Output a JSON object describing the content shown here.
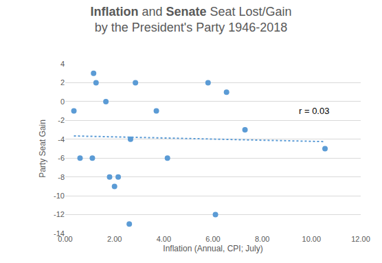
{
  "chart_data": {
    "type": "scatter",
    "title": "Inflation and Senate Seat Lost/Gain\nby the President's Party 1946-2018",
    "x_label": "Inflation (Annual, CPI; July)",
    "y_label": "Party Seat Gain",
    "x": [
      0.35,
      0.6,
      1.1,
      1.15,
      1.25,
      1.65,
      1.8,
      2.0,
      2.15,
      2.6,
      2.65,
      2.85,
      3.7,
      4.15,
      5.8,
      6.1,
      6.55,
      7.3,
      10.55
    ],
    "values": [
      -1,
      -6,
      -6,
      3,
      2,
      0,
      -8,
      -9,
      -8,
      -13,
      -4,
      2,
      -1,
      -6,
      2,
      -12,
      1,
      -3,
      -5
    ],
    "color": "#5b9bd5",
    "marker": "circle",
    "trendline": {
      "x": [
        0.35,
        10.55
      ],
      "values": [
        -3.65,
        -4.25
      ],
      "line_style": "dot"
    },
    "annotations": [
      {
        "text": "r = 0.03",
        "x": 10.1,
        "y": -1
      }
    ],
    "xlim": [
      0,
      12
    ],
    "xticks": [
      {
        "value": 0,
        "label": "0.00"
      },
      {
        "value": 2,
        "label": "2.00"
      },
      {
        "value": 4,
        "label": "4.00"
      },
      {
        "value": 6,
        "label": "6.00"
      },
      {
        "value": 8,
        "label": "8.00"
      },
      {
        "value": 10,
        "label": "10.00"
      },
      {
        "value": 12,
        "label": "12.00"
      }
    ],
    "ylim": [
      -14,
      4
    ],
    "yticks": [
      -14,
      -12,
      -10,
      -8,
      -6,
      -4,
      -2,
      0,
      2,
      4
    ],
    "grid": true
  }
}
